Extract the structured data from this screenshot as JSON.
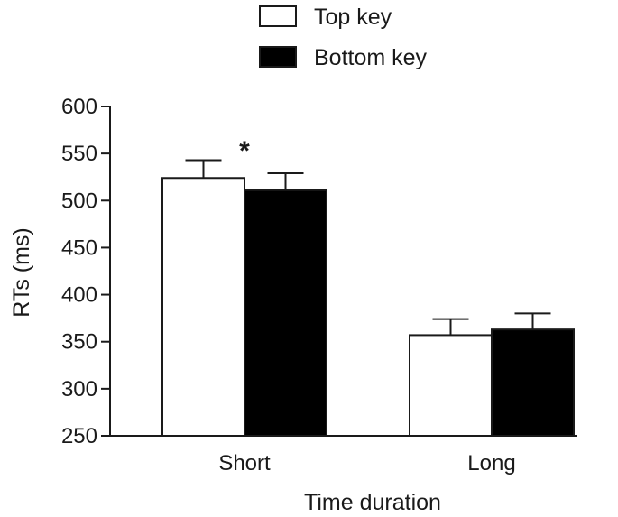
{
  "chart_data": {
    "type": "bar",
    "categories": [
      "Short",
      "Long"
    ],
    "series": [
      {
        "name": "Top key",
        "values": [
          524,
          357
        ],
        "errors": [
          19,
          17
        ],
        "fill": "#ffffff"
      },
      {
        "name": "Bottom key",
        "values": [
          511,
          363
        ],
        "errors": [
          18,
          17
        ],
        "fill": "#000000"
      }
    ],
    "xlabel": "Time duration",
    "ylabel": "RTs (ms)",
    "ylim": [
      250,
      600
    ],
    "yticks": [
      250,
      300,
      350,
      400,
      450,
      500,
      550,
      600
    ],
    "legend_position": "top",
    "grid": false,
    "annotations": [
      {
        "text": "*",
        "category": "Short"
      }
    ]
  }
}
